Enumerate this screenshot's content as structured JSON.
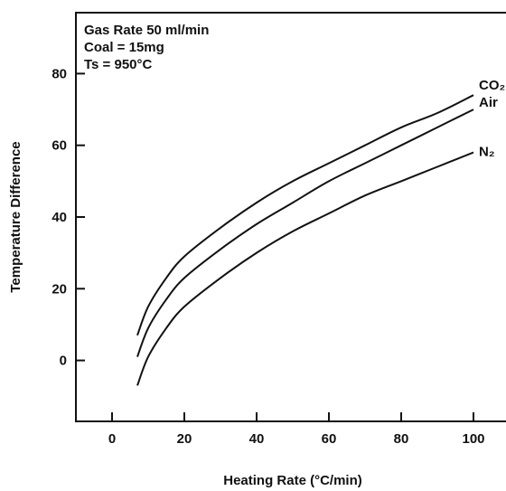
{
  "chart_data": {
    "type": "line",
    "title": "",
    "xlabel": "Heating Rate (°C/min)",
    "ylabel": "Temperature Difference",
    "xlim": [
      -10,
      110
    ],
    "ylim": [
      -17,
      97
    ],
    "xticks": [
      0,
      20,
      40,
      60,
      80,
      100
    ],
    "yticks": [
      0,
      20,
      40,
      60,
      80
    ],
    "grid": false,
    "annotations": [
      "Gas Rate 50 ml/min",
      "Coal = 15mg",
      "Ts = 950°C"
    ],
    "series": [
      {
        "name": "CO₂",
        "x": [
          7,
          10,
          15,
          20,
          30,
          40,
          50,
          60,
          70,
          80,
          90,
          100
        ],
        "y": [
          7,
          15,
          23,
          29,
          37,
          44,
          50,
          55,
          60,
          65,
          69,
          74
        ]
      },
      {
        "name": "Air",
        "x": [
          7,
          10,
          15,
          20,
          30,
          40,
          50,
          60,
          70,
          80,
          90,
          100
        ],
        "y": [
          1,
          9,
          17,
          23,
          31,
          38,
          44,
          50,
          55,
          60,
          65,
          70
        ]
      },
      {
        "name": "N₂",
        "x": [
          7,
          10,
          15,
          20,
          30,
          40,
          50,
          60,
          70,
          80,
          90,
          100
        ],
        "y": [
          -7,
          1,
          9,
          15,
          23,
          30,
          36,
          41,
          46,
          50,
          54,
          58
        ]
      }
    ]
  }
}
